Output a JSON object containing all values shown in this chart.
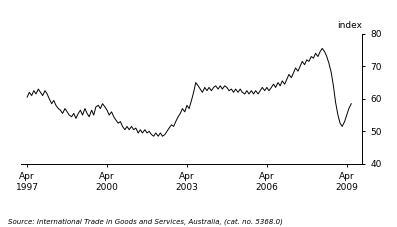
{
  "ylabel_text": "index",
  "source_text": "Source: International Trade in Goods and Services, Australia, (cat. no. 5368.0)",
  "ylim": [
    40,
    80
  ],
  "yticks": [
    40,
    50,
    60,
    70,
    80
  ],
  "line_color": "#000000",
  "line_width": 0.7,
  "background_color": "#ffffff",
  "x_tick_labels": [
    "Apr\n1997",
    "Apr\n2000",
    "Apr\n2003",
    "Apr\n2006",
    "Apr\n2009"
  ],
  "x_tick_positions": [
    1997.25,
    2000.25,
    2003.25,
    2006.25,
    2009.25
  ],
  "xlim": [
    1997.0,
    2009.83
  ],
  "data": [
    [
      1997.25,
      60.5
    ],
    [
      1997.33,
      62.0
    ],
    [
      1997.42,
      61.0
    ],
    [
      1997.5,
      62.5
    ],
    [
      1997.58,
      61.5
    ],
    [
      1997.67,
      63.0
    ],
    [
      1997.75,
      62.0
    ],
    [
      1997.83,
      61.0
    ],
    [
      1997.92,
      62.5
    ],
    [
      1998.0,
      61.5
    ],
    [
      1998.08,
      60.0
    ],
    [
      1998.17,
      58.5
    ],
    [
      1998.25,
      59.5
    ],
    [
      1998.33,
      58.0
    ],
    [
      1998.42,
      57.0
    ],
    [
      1998.5,
      56.5
    ],
    [
      1998.58,
      55.5
    ],
    [
      1998.67,
      57.0
    ],
    [
      1998.75,
      56.0
    ],
    [
      1998.83,
      55.0
    ],
    [
      1998.92,
      54.5
    ],
    [
      1999.0,
      55.5
    ],
    [
      1999.08,
      54.0
    ],
    [
      1999.17,
      55.5
    ],
    [
      1999.25,
      56.5
    ],
    [
      1999.33,
      55.0
    ],
    [
      1999.42,
      57.0
    ],
    [
      1999.5,
      55.5
    ],
    [
      1999.58,
      54.5
    ],
    [
      1999.67,
      56.5
    ],
    [
      1999.75,
      55.0
    ],
    [
      1999.83,
      57.5
    ],
    [
      1999.92,
      58.0
    ],
    [
      2000.0,
      57.0
    ],
    [
      2000.08,
      58.5
    ],
    [
      2000.17,
      57.5
    ],
    [
      2000.25,
      56.5
    ],
    [
      2000.33,
      55.0
    ],
    [
      2000.42,
      56.0
    ],
    [
      2000.5,
      54.5
    ],
    [
      2000.58,
      53.5
    ],
    [
      2000.67,
      52.5
    ],
    [
      2000.75,
      53.0
    ],
    [
      2000.83,
      51.5
    ],
    [
      2000.92,
      50.5
    ],
    [
      2001.0,
      51.5
    ],
    [
      2001.08,
      50.5
    ],
    [
      2001.17,
      51.5
    ],
    [
      2001.25,
      50.5
    ],
    [
      2001.33,
      51.0
    ],
    [
      2001.42,
      49.5
    ],
    [
      2001.5,
      50.5
    ],
    [
      2001.58,
      49.5
    ],
    [
      2001.67,
      50.5
    ],
    [
      2001.75,
      49.5
    ],
    [
      2001.83,
      50.0
    ],
    [
      2001.92,
      49.0
    ],
    [
      2002.0,
      48.5
    ],
    [
      2002.08,
      49.5
    ],
    [
      2002.17,
      48.5
    ],
    [
      2002.25,
      49.5
    ],
    [
      2002.33,
      48.5
    ],
    [
      2002.42,
      49.0
    ],
    [
      2002.5,
      50.0
    ],
    [
      2002.58,
      51.0
    ],
    [
      2002.67,
      52.0
    ],
    [
      2002.75,
      51.5
    ],
    [
      2002.83,
      53.0
    ],
    [
      2002.92,
      54.5
    ],
    [
      2003.0,
      55.5
    ],
    [
      2003.08,
      57.0
    ],
    [
      2003.17,
      56.0
    ],
    [
      2003.25,
      58.0
    ],
    [
      2003.33,
      57.0
    ],
    [
      2003.42,
      59.5
    ],
    [
      2003.5,
      62.0
    ],
    [
      2003.58,
      65.0
    ],
    [
      2003.67,
      64.0
    ],
    [
      2003.75,
      63.0
    ],
    [
      2003.83,
      62.0
    ],
    [
      2003.92,
      63.5
    ],
    [
      2004.0,
      62.5
    ],
    [
      2004.08,
      63.5
    ],
    [
      2004.17,
      62.5
    ],
    [
      2004.25,
      63.5
    ],
    [
      2004.33,
      64.0
    ],
    [
      2004.42,
      63.0
    ],
    [
      2004.5,
      64.0
    ],
    [
      2004.58,
      63.0
    ],
    [
      2004.67,
      64.0
    ],
    [
      2004.75,
      63.5
    ],
    [
      2004.83,
      62.5
    ],
    [
      2004.92,
      63.0
    ],
    [
      2005.0,
      62.0
    ],
    [
      2005.08,
      63.0
    ],
    [
      2005.17,
      62.0
    ],
    [
      2005.25,
      63.0
    ],
    [
      2005.33,
      62.0
    ],
    [
      2005.42,
      61.5
    ],
    [
      2005.5,
      62.5
    ],
    [
      2005.58,
      61.5
    ],
    [
      2005.67,
      62.5
    ],
    [
      2005.75,
      61.5
    ],
    [
      2005.83,
      62.5
    ],
    [
      2005.92,
      61.5
    ],
    [
      2006.0,
      62.5
    ],
    [
      2006.08,
      63.5
    ],
    [
      2006.17,
      62.5
    ],
    [
      2006.25,
      63.5
    ],
    [
      2006.33,
      62.5
    ],
    [
      2006.42,
      63.5
    ],
    [
      2006.5,
      64.5
    ],
    [
      2006.58,
      63.5
    ],
    [
      2006.67,
      65.0
    ],
    [
      2006.75,
      64.0
    ],
    [
      2006.83,
      65.5
    ],
    [
      2006.92,
      64.5
    ],
    [
      2007.0,
      66.0
    ],
    [
      2007.08,
      67.5
    ],
    [
      2007.17,
      66.5
    ],
    [
      2007.25,
      68.0
    ],
    [
      2007.33,
      69.5
    ],
    [
      2007.42,
      68.5
    ],
    [
      2007.5,
      70.0
    ],
    [
      2007.58,
      71.5
    ],
    [
      2007.67,
      70.5
    ],
    [
      2007.75,
      72.0
    ],
    [
      2007.83,
      71.5
    ],
    [
      2007.92,
      73.0
    ],
    [
      2008.0,
      72.5
    ],
    [
      2008.08,
      74.0
    ],
    [
      2008.17,
      73.0
    ],
    [
      2008.25,
      74.5
    ],
    [
      2008.33,
      75.5
    ],
    [
      2008.42,
      74.5
    ],
    [
      2008.5,
      73.0
    ],
    [
      2008.58,
      71.0
    ],
    [
      2008.67,
      68.0
    ],
    [
      2008.75,
      64.0
    ],
    [
      2008.83,
      59.0
    ],
    [
      2008.92,
      55.0
    ],
    [
      2009.0,
      52.5
    ],
    [
      2009.08,
      51.5
    ],
    [
      2009.17,
      53.0
    ],
    [
      2009.25,
      55.0
    ],
    [
      2009.33,
      57.0
    ],
    [
      2009.42,
      58.5
    ]
  ]
}
